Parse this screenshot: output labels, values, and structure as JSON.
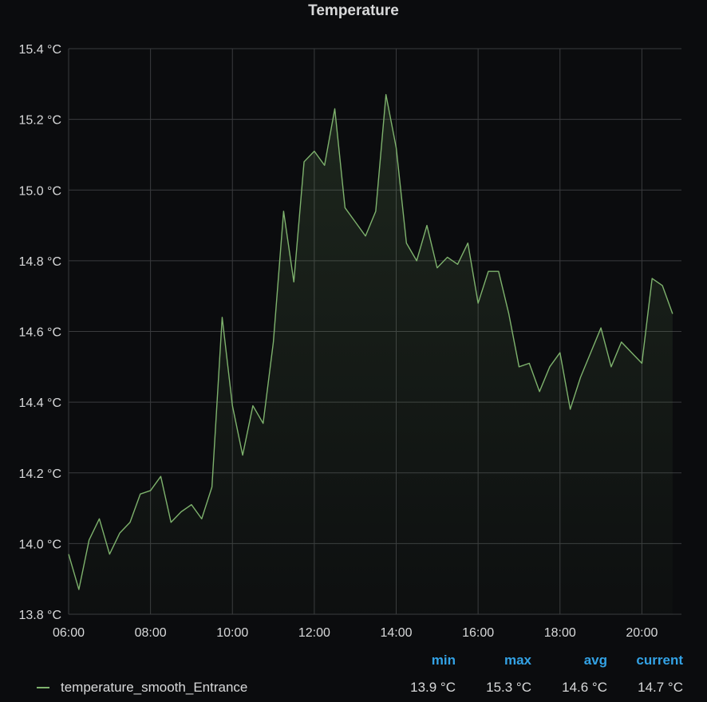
{
  "panel": {
    "title": "Temperature"
  },
  "colors": {
    "series": "#7eb26d",
    "legend_header": "#33a2e5",
    "background": "#0b0c0e",
    "grid": "#3a3b3e",
    "text": "#d8d9da"
  },
  "legend": {
    "headers": [
      "min",
      "max",
      "avg",
      "current"
    ],
    "series_name": "temperature_smooth_Entrance",
    "values": [
      "13.9 °C",
      "15.3 °C",
      "14.6 °C",
      "14.7 °C"
    ]
  },
  "chart_data": {
    "type": "area",
    "title": "Temperature",
    "xlabel": "",
    "ylabel": "",
    "unit": "°C",
    "ylim": [
      13.8,
      15.4
    ],
    "y_ticks": [
      "13.8 °C",
      "14.0 °C",
      "14.2 °C",
      "14.4 °C",
      "14.6 °C",
      "14.8 °C",
      "15.0 °C",
      "15.2 °C",
      "15.4 °C"
    ],
    "x_ticks": [
      "06:00",
      "08:00",
      "10:00",
      "12:00",
      "14:00",
      "16:00",
      "18:00",
      "20:00"
    ],
    "grid": true,
    "legend_position": "bottom",
    "series": [
      {
        "name": "temperature_smooth_Entrance",
        "x": [
          "06:00",
          "06:15",
          "06:30",
          "06:45",
          "07:00",
          "07:15",
          "07:30",
          "07:45",
          "08:00",
          "08:15",
          "08:30",
          "08:45",
          "09:00",
          "09:15",
          "09:30",
          "09:45",
          "10:00",
          "10:15",
          "10:30",
          "10:45",
          "11:00",
          "11:15",
          "11:30",
          "11:45",
          "12:00",
          "12:15",
          "12:30",
          "12:45",
          "13:00",
          "13:15",
          "13:30",
          "13:45",
          "14:00",
          "14:15",
          "14:30",
          "14:45",
          "15:00",
          "15:15",
          "15:30",
          "15:45",
          "16:00",
          "16:15",
          "16:30",
          "16:45",
          "17:00",
          "17:15",
          "17:30",
          "17:45",
          "18:00",
          "18:15",
          "18:30",
          "18:45",
          "19:00",
          "19:15",
          "19:30",
          "19:45",
          "20:00",
          "20:15",
          "20:30",
          "20:45"
        ],
        "values": [
          13.97,
          13.87,
          14.01,
          14.07,
          13.97,
          14.03,
          14.06,
          14.14,
          14.15,
          14.19,
          14.06,
          14.09,
          14.11,
          14.07,
          14.16,
          14.64,
          14.39,
          14.25,
          14.39,
          14.34,
          14.57,
          14.94,
          14.74,
          15.08,
          15.11,
          15.07,
          15.23,
          14.95,
          14.91,
          14.87,
          14.94,
          15.27,
          15.12,
          14.85,
          14.8,
          14.9,
          14.78,
          14.81,
          14.79,
          14.85,
          14.68,
          14.77,
          14.77,
          14.65,
          14.5,
          14.51,
          14.43,
          14.5,
          14.54,
          14.38,
          14.47,
          14.54,
          14.61,
          14.5,
          14.57,
          14.54,
          14.51,
          14.75,
          14.73,
          14.65
        ]
      }
    ]
  }
}
